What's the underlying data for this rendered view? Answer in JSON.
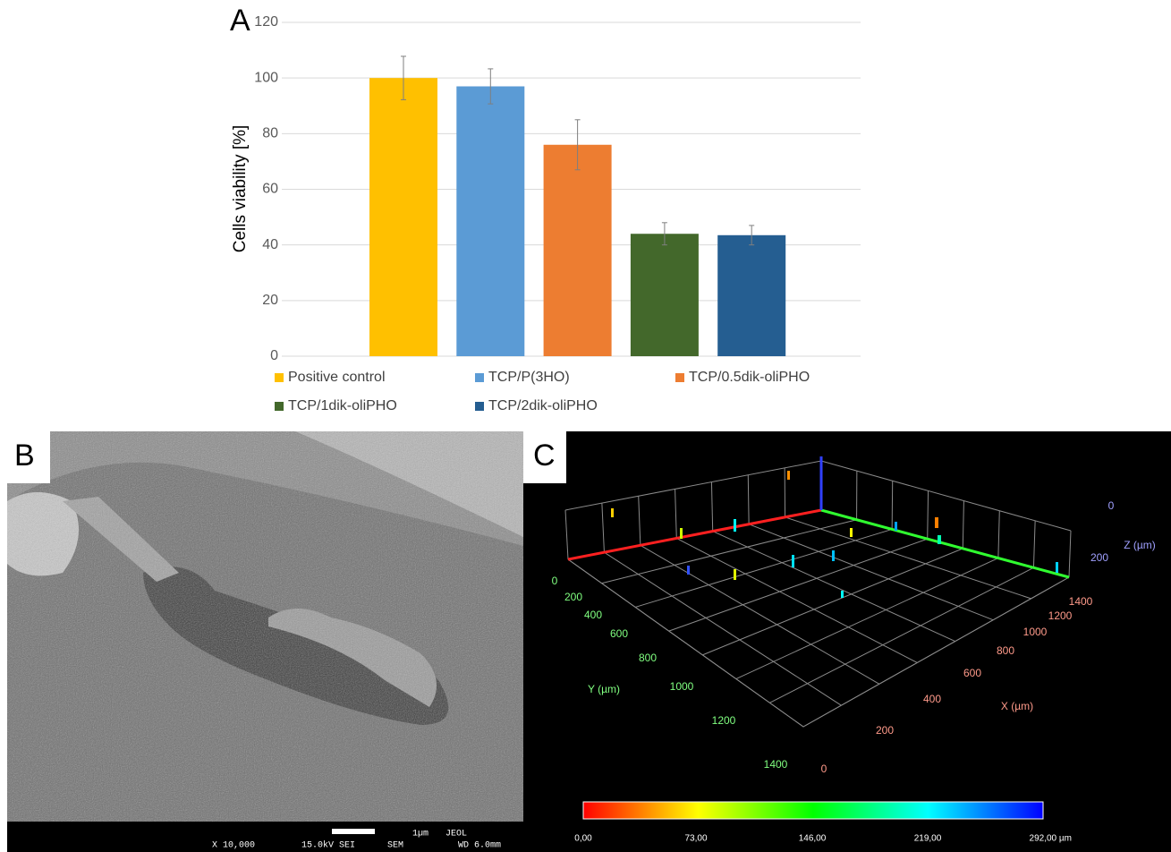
{
  "chart_data": {
    "type": "bar",
    "panel_label": "A",
    "y_label": "Cells viability [%]",
    "ylim": [
      0,
      120
    ],
    "yticks": [
      0,
      20,
      40,
      60,
      80,
      100,
      120
    ],
    "grid": true,
    "series": [
      {
        "name": "Positive control",
        "color": "#ffc000",
        "values": [
          100
        ],
        "errors": [
          7.8
        ]
      },
      {
        "name": "TCP/P(3HO)",
        "color": "#5b9bd5",
        "values": [
          97
        ],
        "errors": [
          6.3
        ]
      },
      {
        "name": "TCP/0.5dik-oliPHO",
        "color": "#ed7d31",
        "values": [
          76
        ],
        "errors": [
          9
        ]
      },
      {
        "name": "TCP/1dik-oliPHO",
        "color": "#43682b",
        "values": [
          44
        ],
        "errors": [
          4
        ]
      },
      {
        "name": "TCP/2dik-oliPHO",
        "color": "#255e91",
        "values": [
          43.5
        ],
        "errors": [
          3.5
        ]
      }
    ]
  },
  "panel_b": {
    "label": "B",
    "scale": "1µm",
    "brand": "JEOL",
    "mag": "X 10,000",
    "kv": "15.0kV SEI",
    "mode": "SEM",
    "wd": "WD 6.0mm"
  },
  "panel_c": {
    "label": "C",
    "y_title": "Y (µm)",
    "x_title": "X (µm)",
    "z_title": "Z (µm)",
    "y_ticks": [
      "0",
      "200",
      "400",
      "600",
      "800",
      "1000",
      "1200",
      "1400"
    ],
    "x_ticks": [
      "0",
      "200",
      "400",
      "600",
      "800",
      "1000",
      "1200",
      "1400"
    ],
    "z_ticks": [
      "0",
      "200"
    ],
    "colorbar_labels": [
      "0,00",
      "73,00",
      "146,00",
      "219,00",
      "292,00 µm"
    ]
  }
}
